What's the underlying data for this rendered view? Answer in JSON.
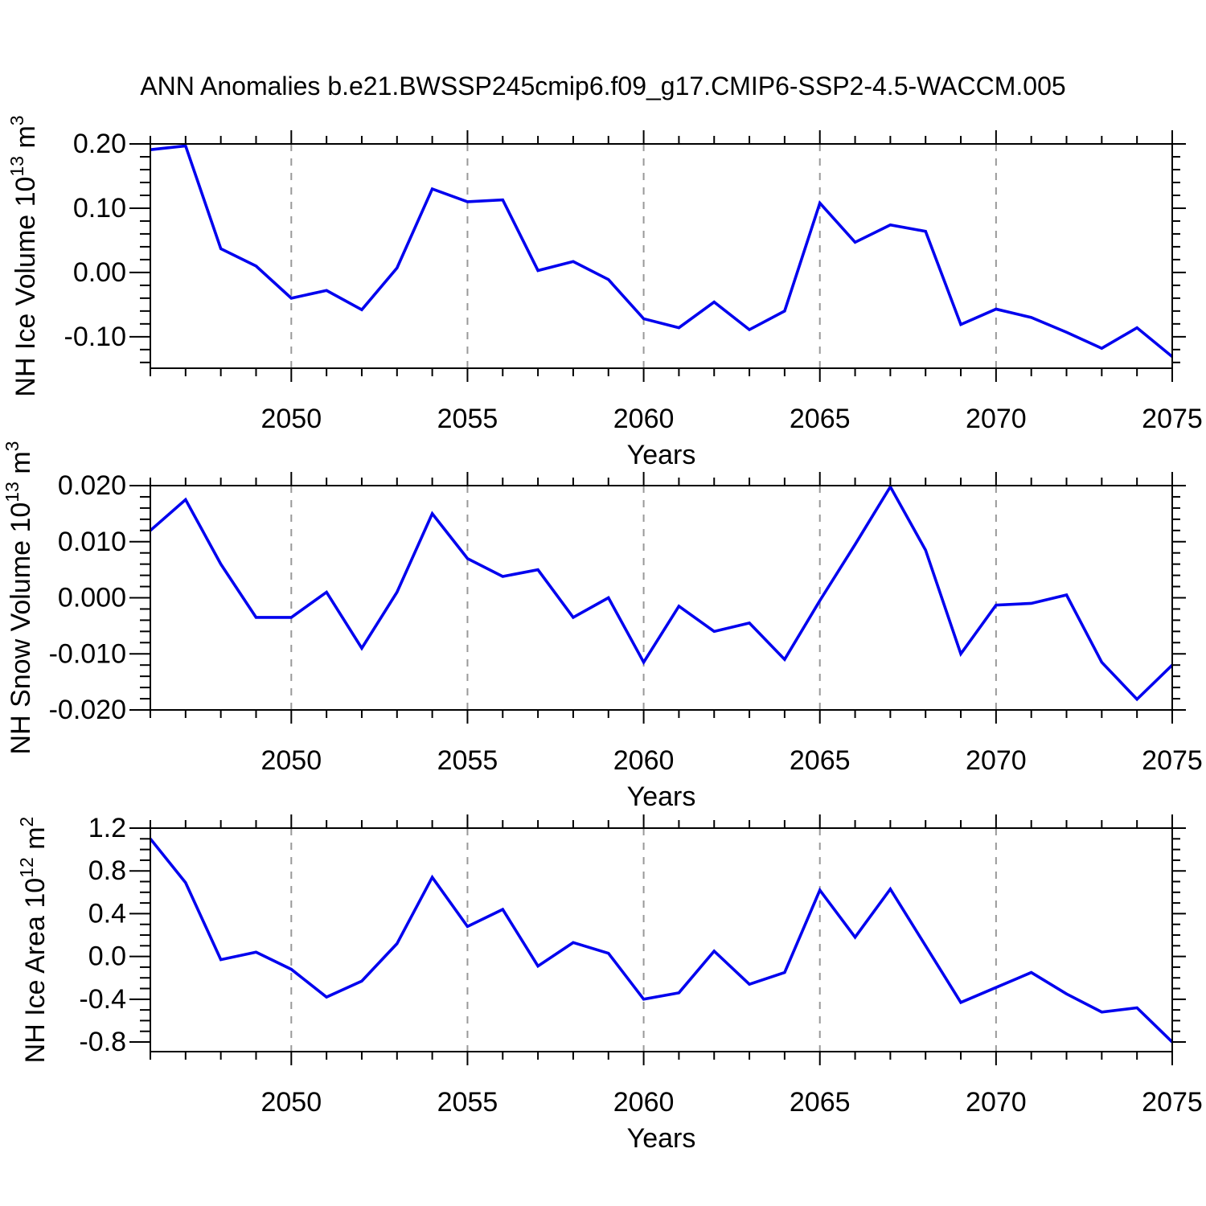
{
  "title": "ANN Anomalies b.e21.BWSSP245cmip6.f09_g17.CMIP6-SSP2-4.5-WACCM.005",
  "colors": {
    "line": "#0000ee",
    "grid": "#999999",
    "frame": "#000000",
    "text": "#000000",
    "background": "#ffffff"
  },
  "chart_data": [
    {
      "id": "nh-ice-volume",
      "type": "line",
      "ylabel": "NH Ice Volume 10^13 m^3",
      "ylabel_parts": [
        {
          "t": "NH Ice Volume 10"
        },
        {
          "t": "13",
          "sup": true
        },
        {
          "t": " m"
        },
        {
          "t": "3",
          "sup": true
        }
      ],
      "xlabel": "Years",
      "x": [
        2046,
        2047,
        2048,
        2049,
        2050,
        2051,
        2052,
        2053,
        2054,
        2055,
        2056,
        2057,
        2058,
        2059,
        2060,
        2061,
        2062,
        2063,
        2064,
        2065,
        2066,
        2067,
        2068,
        2069,
        2070,
        2071,
        2072,
        2073,
        2074,
        2075
      ],
      "values": [
        0.191,
        0.197,
        0.037,
        0.01,
        -0.04,
        -0.028,
        -0.058,
        0.007,
        0.13,
        0.11,
        0.113,
        0.003,
        0.017,
        -0.011,
        -0.072,
        -0.086,
        -0.046,
        -0.089,
        -0.06,
        0.108,
        0.047,
        0.074,
        0.064,
        -0.081,
        -0.057,
        -0.07,
        -0.093,
        -0.118,
        -0.086,
        -0.131
      ],
      "xlim": [
        2046,
        2075
      ],
      "ylim": [
        -0.149,
        0.2
      ],
      "yticks": [
        0.2,
        0.1,
        0.0,
        -0.1
      ],
      "ytick_labels": [
        "0.20",
        "0.10",
        "0.00",
        "-0.10"
      ],
      "y_minor_step": 0.02,
      "y_minors_per_major": 5,
      "xticks": [
        2050,
        2055,
        2060,
        2065,
        2070,
        2075
      ],
      "xtick_labels": [
        "2050",
        "2055",
        "2060",
        "2065",
        "2070",
        "2075"
      ],
      "x_minor_step": 1,
      "grid_x": [
        2050,
        2055,
        2060,
        2065,
        2070
      ]
    },
    {
      "id": "nh-snow-volume",
      "type": "line",
      "ylabel": "NH Snow Volume 10^13 m^3",
      "ylabel_parts": [
        {
          "t": "NH Snow Volume 10"
        },
        {
          "t": "13",
          "sup": true
        },
        {
          "t": " m"
        },
        {
          "t": "3",
          "sup": true
        }
      ],
      "xlabel": "Years",
      "x": [
        2046,
        2047,
        2048,
        2049,
        2050,
        2051,
        2052,
        2053,
        2054,
        2055,
        2056,
        2057,
        2058,
        2059,
        2060,
        2061,
        2062,
        2063,
        2064,
        2065,
        2066,
        2067,
        2068,
        2069,
        2070,
        2071,
        2072,
        2073,
        2074,
        2075
      ],
      "values": [
        0.012,
        0.0175,
        0.006,
        -0.0035,
        -0.0035,
        0.001,
        -0.009,
        0.001,
        0.015,
        0.007,
        0.0038,
        0.005,
        -0.0035,
        0.0,
        -0.0115,
        -0.0015,
        -0.006,
        -0.0045,
        -0.011,
        -0.0005,
        0.0095,
        0.0198,
        0.0085,
        -0.01,
        -0.0013,
        -0.001,
        0.0005,
        -0.0115,
        -0.0181,
        -0.012
      ],
      "xlim": [
        2046,
        2075
      ],
      "ylim": [
        -0.02,
        0.02
      ],
      "yticks": [
        0.02,
        0.01,
        0.0,
        -0.01,
        -0.02
      ],
      "ytick_labels": [
        "0.020",
        "0.010",
        "0.000",
        "-0.010",
        "-0.020"
      ],
      "y_minor_step": 0.002,
      "y_minors_per_major": 5,
      "xticks": [
        2050,
        2055,
        2060,
        2065,
        2070,
        2075
      ],
      "xtick_labels": [
        "2050",
        "2055",
        "2060",
        "2065",
        "2070",
        "2075"
      ],
      "x_minor_step": 1,
      "grid_x": [
        2050,
        2055,
        2060,
        2065,
        2070
      ]
    },
    {
      "id": "nh-ice-area",
      "type": "line",
      "ylabel": "NH Ice Area 10^12 m^2",
      "ylabel_parts": [
        {
          "t": "NH Ice Area 10"
        },
        {
          "t": "12",
          "sup": true
        },
        {
          "t": " m"
        },
        {
          "t": "2",
          "sup": true
        }
      ],
      "xlabel": "Years",
      "x": [
        2046,
        2047,
        2048,
        2049,
        2050,
        2051,
        2052,
        2053,
        2054,
        2055,
        2056,
        2057,
        2058,
        2059,
        2060,
        2061,
        2062,
        2063,
        2064,
        2065,
        2066,
        2067,
        2068,
        2069,
        2070,
        2071,
        2072,
        2073,
        2074,
        2075
      ],
      "values": [
        1.1,
        0.69,
        -0.03,
        0.04,
        -0.12,
        -0.38,
        -0.23,
        0.12,
        0.74,
        0.28,
        0.44,
        -0.09,
        0.13,
        0.03,
        -0.4,
        -0.34,
        0.05,
        -0.26,
        -0.15,
        0.62,
        0.18,
        0.63,
        0.1,
        -0.43,
        -0.29,
        -0.15,
        -0.35,
        -0.52,
        -0.48,
        -0.8
      ],
      "xlim": [
        2046,
        2075
      ],
      "ylim": [
        -0.89,
        1.2
      ],
      "yticks": [
        1.2,
        0.8,
        0.4,
        0.0,
        -0.4,
        -0.8
      ],
      "ytick_labels": [
        "1.2",
        "0.8",
        "0.4",
        "0.0",
        "-0.4",
        "-0.8"
      ],
      "y_minor_step": 0.1,
      "y_minors_per_major": 4,
      "xticks": [
        2050,
        2055,
        2060,
        2065,
        2070,
        2075
      ],
      "xtick_labels": [
        "2050",
        "2055",
        "2060",
        "2065",
        "2070",
        "2075"
      ],
      "x_minor_step": 1,
      "grid_x": [
        2050,
        2055,
        2060,
        2065,
        2070
      ]
    }
  ]
}
